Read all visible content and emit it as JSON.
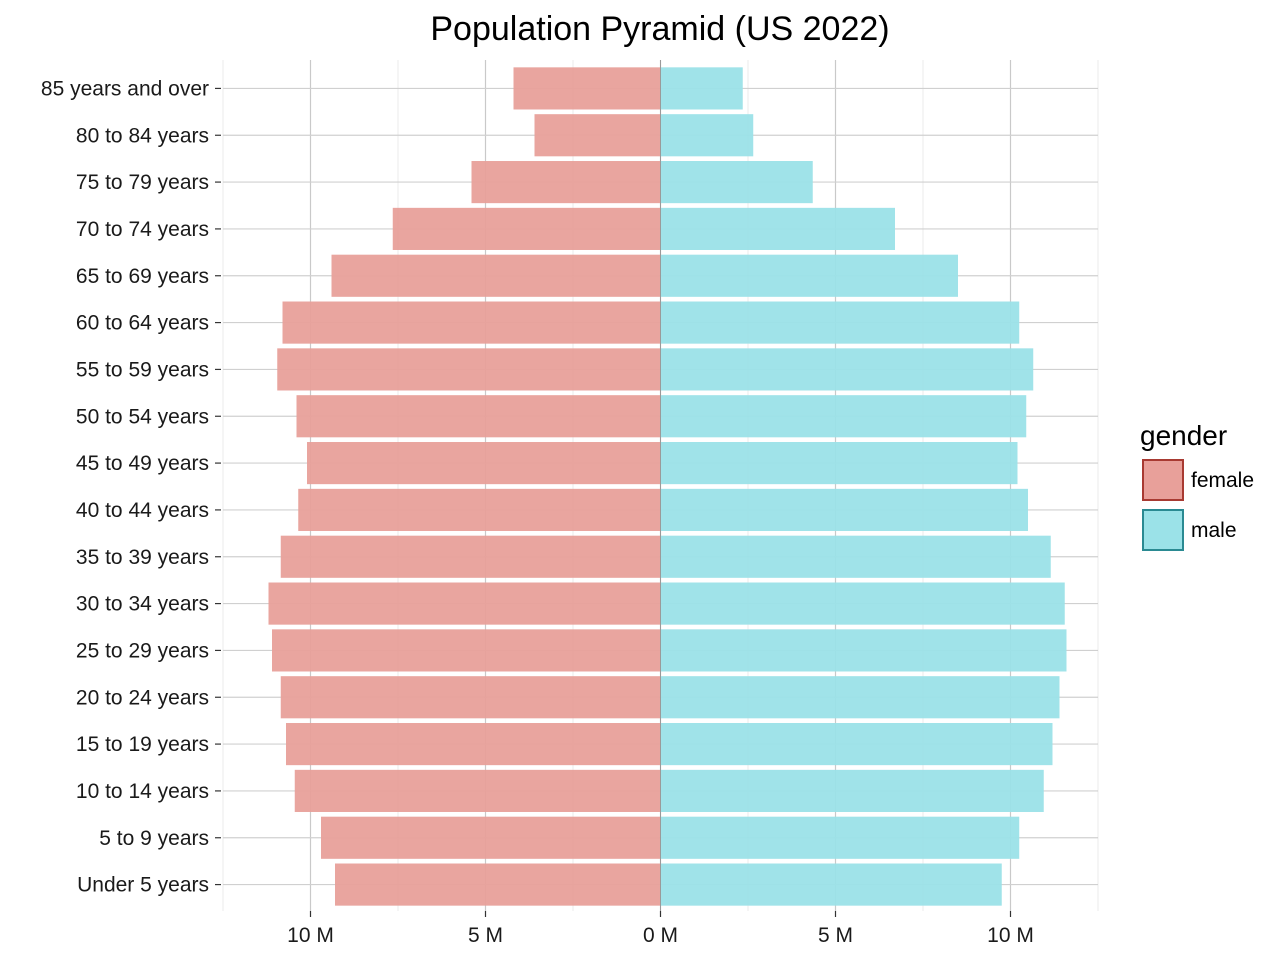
{
  "chart_data": {
    "type": "bar",
    "orientation": "horizontal",
    "layout": "diverging",
    "title": "Population Pyramid (US 2022)",
    "xlabel": "",
    "ylabel": "",
    "xlim": [
      -12.5,
      12.5
    ],
    "x_unit": "M",
    "x_ticks": [
      -10,
      -5,
      0,
      5,
      10
    ],
    "x_tick_labels": [
      "10 M",
      "5 M",
      "0 M",
      "5 M",
      "10 M"
    ],
    "grid": true,
    "categories": [
      "Under 5 years",
      "5 to 9 years",
      "10 to 14 years",
      "15 to 19 years",
      "20 to 24 years",
      "25 to 29 years",
      "30 to 34 years",
      "35 to 39 years",
      "40 to 44 years",
      "45 to 49 years",
      "50 to 54 years",
      "55 to 59 years",
      "60 to 64 years",
      "65 to 69 years",
      "70 to 74 years",
      "75 to 79 years",
      "80 to 84 years",
      "85 years and over"
    ],
    "series": [
      {
        "name": "female",
        "side": "left",
        "color": "#e8a09a",
        "values": [
          9.3,
          9.7,
          10.45,
          10.7,
          10.85,
          11.1,
          11.2,
          10.85,
          10.35,
          10.1,
          10.4,
          10.95,
          10.8,
          9.4,
          7.65,
          5.4,
          3.6,
          4.2
        ]
      },
      {
        "name": "male",
        "side": "right",
        "color": "#9be2e8",
        "values": [
          9.75,
          10.25,
          10.95,
          11.2,
          11.4,
          11.6,
          11.55,
          11.15,
          10.5,
          10.2,
          10.45,
          10.65,
          10.25,
          8.5,
          6.7,
          4.35,
          2.65,
          2.35
        ]
      }
    ],
    "legend": {
      "title": "gender",
      "placement": "right",
      "items": [
        {
          "label": "female",
          "color": "#e8a09a",
          "border": "#a83a32"
        },
        {
          "label": "male",
          "color": "#9be2e8",
          "border": "#2a8a92"
        }
      ]
    }
  }
}
